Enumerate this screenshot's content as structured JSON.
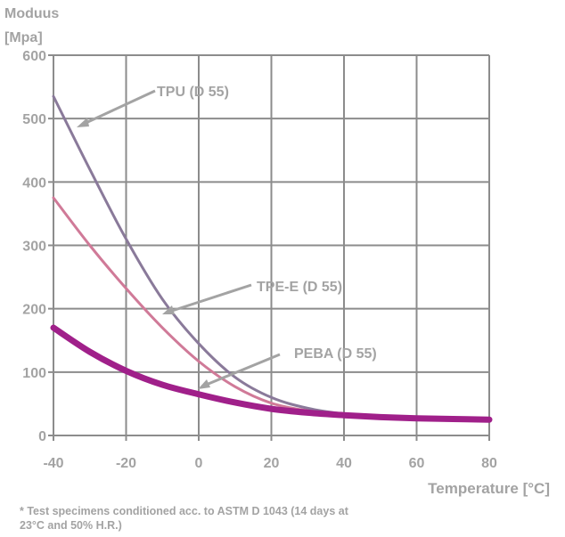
{
  "chart_data": {
    "type": "line",
    "title": "",
    "ylabel_line1": "Moduus",
    "ylabel_line2": "[Mpa]",
    "xlabel": "Temperature [°C]",
    "xlim": [
      -40,
      80
    ],
    "ylim": [
      0,
      600
    ],
    "xticks": [
      -40,
      -20,
      0,
      20,
      40,
      60,
      80
    ],
    "yticks": [
      0,
      100,
      200,
      300,
      400,
      500,
      600
    ],
    "grid": true,
    "x": [
      -40,
      -30,
      -20,
      -10,
      0,
      10,
      20,
      30,
      40,
      50,
      60,
      70,
      80
    ],
    "series": [
      {
        "name": "TPU (D 55)",
        "color": "#8a7a9a",
        "values": [
          535,
          420,
          310,
          215,
          145,
          92,
          60,
          43,
          34,
          30,
          27,
          26,
          25
        ]
      },
      {
        "name": "TPE-E (D 55)",
        "color": "#d07a98",
        "values": [
          375,
          300,
          232,
          170,
          117,
          77,
          51,
          39,
          32,
          29,
          27,
          26,
          25
        ]
      },
      {
        "name": "PEBA (D 55)",
        "color": "#a0208a",
        "values": [
          170,
          132,
          102,
          80,
          65,
          52,
          42,
          36,
          32,
          29,
          27,
          26,
          25
        ]
      }
    ],
    "annotations": [
      "TPU (D 55)",
      "TPE-E (D 55)",
      "PEBA (D 55)"
    ]
  },
  "footnote": "* Test specimens conditioned acc. to ASTM D 1043 (14 days at 23°C and 50% H.R.)"
}
